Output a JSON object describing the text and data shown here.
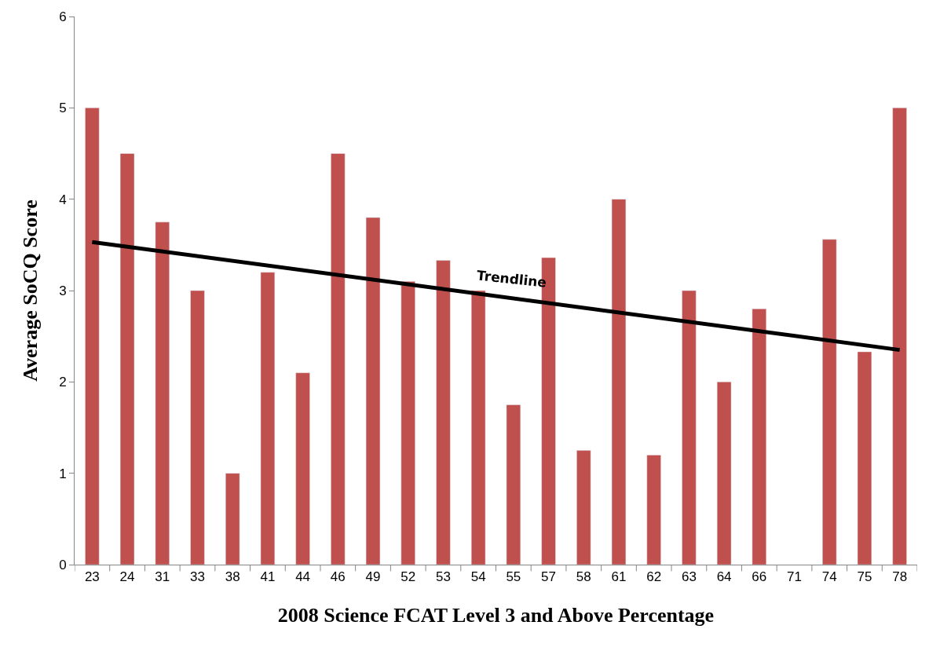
{
  "chart_data": {
    "type": "bar",
    "xlabel": "2008 Science FCAT Level 3 and Above Percentage",
    "ylabel": "Average SoCQ Score",
    "categories": [
      "23",
      "24",
      "31",
      "33",
      "38",
      "41",
      "44",
      "46",
      "49",
      "52",
      "53",
      "54",
      "55",
      "57",
      "58",
      "61",
      "62",
      "63",
      "64",
      "66",
      "71",
      "74",
      "75",
      "78"
    ],
    "series": [
      {
        "color": "#c0504d",
        "values": [
          5,
          4.5,
          3.75,
          3,
          1,
          3.2,
          2.1,
          4.5,
          3.8,
          3.1,
          3.33,
          3,
          1.75,
          3.36,
          1.25,
          4,
          1.2,
          3,
          2,
          2.8,
          null,
          3.56,
          2.33,
          5
        ]
      },
      {
        "type": "line",
        "name": "Trendline",
        "color": "#000000",
        "x": [
          "23",
          "78"
        ],
        "values": [
          3.53,
          2.35
        ]
      }
    ],
    "ylim": [
      0,
      6
    ],
    "yticks": [
      0,
      1,
      2,
      3,
      4,
      5,
      6
    ]
  }
}
